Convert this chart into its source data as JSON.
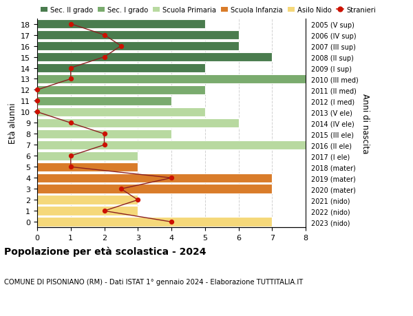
{
  "ages": [
    18,
    17,
    16,
    15,
    14,
    13,
    12,
    11,
    10,
    9,
    8,
    7,
    6,
    5,
    4,
    3,
    2,
    1,
    0
  ],
  "anni_nascita": [
    "2005 (V sup)",
    "2006 (IV sup)",
    "2007 (III sup)",
    "2008 (II sup)",
    "2009 (I sup)",
    "2010 (III med)",
    "2011 (II med)",
    "2012 (I med)",
    "2013 (V ele)",
    "2014 (IV ele)",
    "2015 (III ele)",
    "2016 (II ele)",
    "2017 (I ele)",
    "2018 (mater)",
    "2019 (mater)",
    "2020 (mater)",
    "2021 (nido)",
    "2022 (nido)",
    "2023 (nido)"
  ],
  "bar_values": [
    5,
    6,
    6,
    7,
    5,
    8,
    5,
    4,
    5,
    6,
    4,
    8,
    3,
    3,
    7,
    7,
    3,
    3,
    7
  ],
  "bar_colors": [
    "#4a7c4e",
    "#4a7c4e",
    "#4a7c4e",
    "#4a7c4e",
    "#4a7c4e",
    "#7aab6e",
    "#7aab6e",
    "#7aab6e",
    "#b8d9a0",
    "#b8d9a0",
    "#b8d9a0",
    "#b8d9a0",
    "#b8d9a0",
    "#d97c2a",
    "#d97c2a",
    "#d97c2a",
    "#f5d87a",
    "#f5d87a",
    "#f5d87a"
  ],
  "stranieri_x": [
    1,
    2,
    2.5,
    2,
    1,
    1,
    0,
    0,
    0,
    1,
    2,
    2,
    1,
    1,
    4,
    2.5,
    3,
    2,
    4
  ],
  "stranieri_line_color": "#8b2020",
  "stranieri_dot_color": "#cc1100",
  "legend_labels": [
    "Sec. II grado",
    "Sec. I grado",
    "Scuola Primaria",
    "Scuola Infanzia",
    "Asilo Nido",
    "Stranieri"
  ],
  "legend_colors": [
    "#4a7c4e",
    "#7aab6e",
    "#b8d9a0",
    "#d97c2a",
    "#f5d87a",
    "#cc1100"
  ],
  "ylabel": "Età alunni",
  "ylabel2": "Anni di nascita",
  "title": "Popolazione per età scolastica - 2024",
  "subtitle": "COMUNE DI PISONIANO (RM) - Dati ISTAT 1° gennaio 2024 - Elaborazione TUTTITALIA.IT",
  "xlim": [
    0,
    8
  ],
  "xticks": [
    0,
    1,
    2,
    3,
    4,
    5,
    6,
    7,
    8
  ],
  "ylim": [
    -0.5,
    18.5
  ],
  "bg_color": "#ffffff",
  "grid_color": "#cccccc"
}
